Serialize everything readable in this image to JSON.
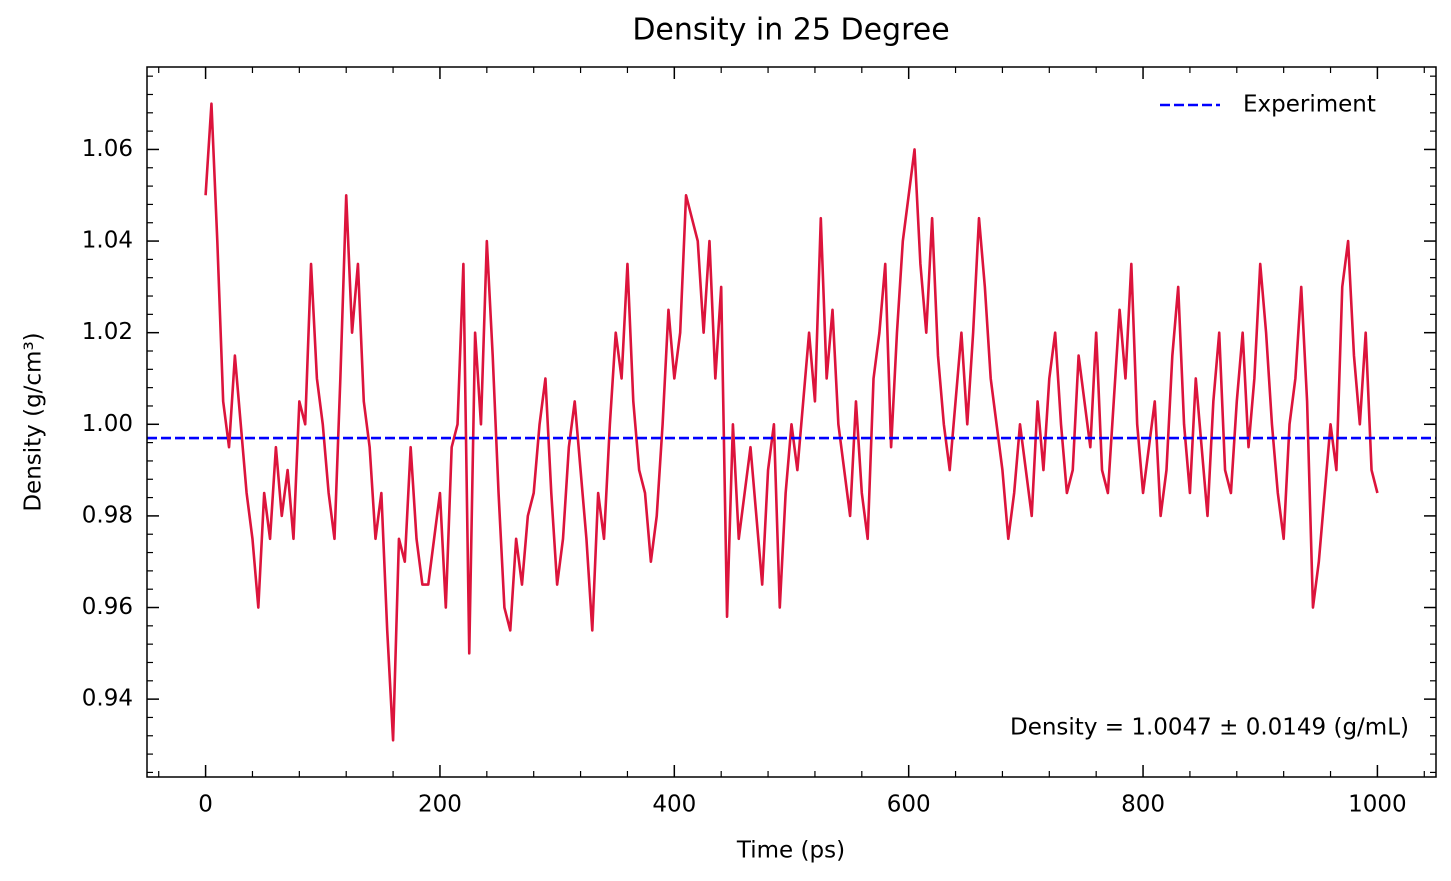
{
  "chart_data": {
    "type": "line",
    "title": "Density in 25 Degree",
    "xlabel": "Time (ps)",
    "ylabel": "Density (g/cm³)",
    "annotation": "Density = 1.0047 ± 0.0149 (g/mL)",
    "legend": "upper right",
    "xlim": [
      -50,
      1050
    ],
    "ylim": [
      0.923,
      1.078
    ],
    "xticks": [
      0,
      200,
      400,
      600,
      800,
      1000
    ],
    "yticks": [
      {
        "value": 0.94,
        "label": "0.94"
      },
      {
        "value": 0.96,
        "label": "0.96"
      },
      {
        "value": 0.98,
        "label": "0.98"
      },
      {
        "value": 1.0,
        "label": "1.00"
      },
      {
        "value": 1.02,
        "label": "1.02"
      },
      {
        "value": 1.04,
        "label": "1.04"
      },
      {
        "value": 1.06,
        "label": "1.06"
      }
    ],
    "xminorticks": [
      -40,
      40,
      80,
      120,
      160,
      240,
      280,
      320,
      360,
      440,
      480,
      520,
      560,
      640,
      680,
      720,
      760,
      840,
      880,
      920,
      960,
      1040
    ],
    "yminorticks": [
      0.924,
      0.928,
      0.932,
      0.936,
      0.944,
      0.948,
      0.952,
      0.956,
      0.964,
      0.968,
      0.972,
      0.976,
      0.984,
      0.988,
      0.992,
      0.996,
      1.004,
      1.008,
      1.012,
      1.016,
      1.024,
      1.028,
      1.032,
      1.036,
      1.044,
      1.048,
      1.052,
      1.056,
      1.064,
      1.068,
      1.072,
      1.076
    ],
    "x": [
      0,
      5,
      10,
      15,
      20,
      25,
      30,
      35,
      40,
      45,
      50,
      55,
      60,
      65,
      70,
      75,
      80,
      85,
      90,
      95,
      100,
      105,
      110,
      115,
      120,
      125,
      130,
      135,
      140,
      145,
      150,
      155,
      160,
      165,
      170,
      175,
      180,
      185,
      190,
      195,
      200,
      205,
      210,
      215,
      220,
      225,
      230,
      235,
      240,
      245,
      250,
      255,
      260,
      265,
      270,
      275,
      280,
      285,
      290,
      295,
      300,
      305,
      310,
      315,
      320,
      325,
      330,
      335,
      340,
      345,
      350,
      355,
      360,
      365,
      370,
      375,
      380,
      385,
      390,
      395,
      400,
      405,
      410,
      415,
      420,
      425,
      430,
      435,
      440,
      445,
      450,
      455,
      460,
      465,
      470,
      475,
      480,
      485,
      490,
      495,
      500,
      505,
      510,
      515,
      520,
      525,
      530,
      535,
      540,
      545,
      550,
      555,
      560,
      565,
      570,
      575,
      580,
      585,
      590,
      595,
      600,
      605,
      610,
      615,
      620,
      625,
      630,
      635,
      640,
      645,
      650,
      655,
      660,
      665,
      670,
      675,
      680,
      685,
      690,
      695,
      700,
      705,
      710,
      715,
      720,
      725,
      730,
      735,
      740,
      745,
      750,
      755,
      760,
      765,
      770,
      775,
      780,
      785,
      790,
      795,
      800,
      805,
      810,
      815,
      820,
      825,
      830,
      835,
      840,
      845,
      850,
      855,
      860,
      865,
      870,
      875,
      880,
      885,
      890,
      895,
      900,
      905,
      910,
      915,
      920,
      925,
      930,
      935,
      940,
      945,
      950,
      955,
      960,
      965,
      970,
      975,
      980,
      985,
      990,
      995,
      1000
    ],
    "series": [
      {
        "color": "#dc143c",
        "values": [
          1.05,
          1.07,
          1.04,
          1.005,
          0.995,
          1.015,
          1.0,
          0.985,
          0.975,
          0.96,
          0.985,
          0.975,
          0.995,
          0.98,
          0.99,
          0.975,
          1.005,
          1.0,
          1.035,
          1.01,
          1.0,
          0.985,
          0.975,
          1.01,
          1.05,
          1.02,
          1.035,
          1.005,
          0.995,
          0.975,
          0.985,
          0.955,
          0.931,
          0.975,
          0.97,
          0.995,
          0.975,
          0.965,
          0.965,
          0.975,
          0.985,
          0.96,
          0.995,
          1.0,
          1.035,
          0.95,
          1.02,
          1.0,
          1.04,
          1.015,
          0.985,
          0.96,
          0.955,
          0.975,
          0.965,
          0.98,
          0.985,
          1.0,
          1.01,
          0.985,
          0.965,
          0.975,
          0.995,
          1.005,
          0.99,
          0.975,
          0.955,
          0.985,
          0.975,
          1.0,
          1.02,
          1.01,
          1.035,
          1.005,
          0.99,
          0.985,
          0.97,
          0.98,
          1.0,
          1.025,
          1.01,
          1.02,
          1.05,
          1.045,
          1.04,
          1.02,
          1.04,
          1.01,
          1.03,
          0.958,
          1.0,
          0.975,
          0.985,
          0.995,
          0.98,
          0.965,
          0.99,
          1.0,
          0.96,
          0.985,
          1.0,
          0.99,
          1.005,
          1.02,
          1.005,
          1.045,
          1.01,
          1.025,
          1.0,
          0.99,
          0.98,
          1.005,
          0.985,
          0.975,
          1.01,
          1.02,
          1.035,
          0.995,
          1.02,
          1.04,
          1.05,
          1.06,
          1.035,
          1.02,
          1.045,
          1.015,
          1.0,
          0.99,
          1.005,
          1.02,
          1.0,
          1.02,
          1.045,
          1.03,
          1.01,
          1.0,
          0.99,
          0.975,
          0.985,
          1.0,
          0.99,
          0.98,
          1.005,
          0.99,
          1.01,
          1.02,
          1.0,
          0.985,
          0.99,
          1.015,
          1.005,
          0.995,
          1.02,
          0.99,
          0.985,
          1.005,
          1.025,
          1.01,
          1.035,
          1.0,
          0.985,
          0.995,
          1.005,
          0.98,
          0.99,
          1.015,
          1.03,
          1.0,
          0.985,
          1.01,
          0.995,
          0.98,
          1.005,
          1.02,
          0.99,
          0.985,
          1.005,
          1.02,
          0.995,
          1.01,
          1.035,
          1.02,
          1.0,
          0.985,
          0.975,
          1.0,
          1.01,
          1.03,
          1.005,
          0.96,
          0.97,
          0.985,
          1.0,
          0.99,
          1.03,
          1.04,
          1.015,
          1.0,
          1.02,
          0.99,
          0.985
        ]
      }
    ],
    "hlines": [
      {
        "name": "Experiment",
        "value": 0.997,
        "color": "#0000ff",
        "dashed": true
      }
    ]
  }
}
